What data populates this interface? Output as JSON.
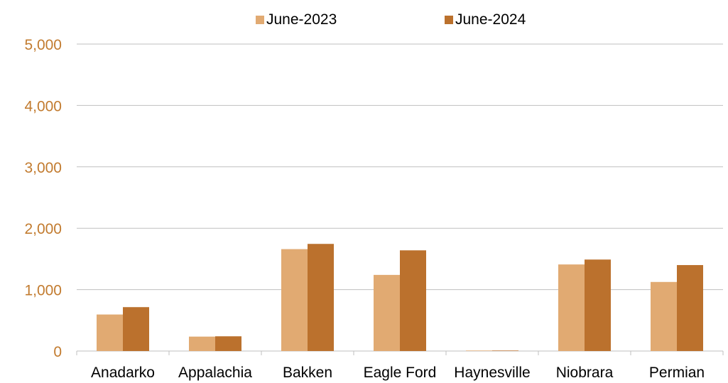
{
  "chart_data": {
    "type": "bar",
    "categories": [
      "Anadarko",
      "Appalachia",
      "Bakken",
      "Eagle Ford",
      "Haynesville",
      "Niobrara",
      "Permian"
    ],
    "series": [
      {
        "name": "June-2023",
        "color": "#e1aa72",
        "values": [
          595,
          235,
          1660,
          1240,
          8,
          1410,
          1125
        ]
      },
      {
        "name": "June-2024",
        "color": "#bb712d",
        "values": [
          715,
          240,
          1745,
          1640,
          8,
          1490,
          1400
        ]
      }
    ],
    "ylim": [
      0,
      5000
    ],
    "yticks": [
      0,
      1000,
      2000,
      3000,
      4000,
      5000
    ],
    "ytick_labels": [
      "0",
      "1,000",
      "2,000",
      "3,000",
      "4,000",
      "5,000"
    ],
    "ytick_color": "#c27b2f",
    "gridline_color": "#bfbfbf",
    "grid": true,
    "legend_position": "top-center",
    "title": "",
    "xlabel": "",
    "ylabel": ""
  }
}
